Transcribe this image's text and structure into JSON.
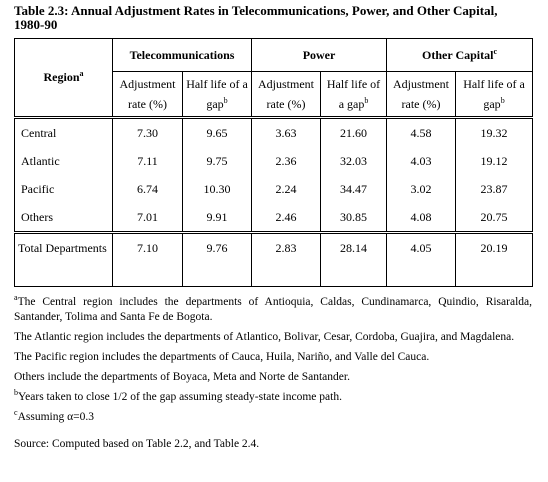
{
  "title": "Table 2.3: Annual Adjustment Rates in Telecommunications, Power, and Other Capital, 1980-90",
  "table": {
    "region_header": {
      "text": "Region",
      "sup": "a"
    },
    "groups": [
      {
        "text": "Telecommunications",
        "columns": [
          {
            "text": "Adjustment rate (%)"
          },
          {
            "text": "Half life of a gap",
            "sup": "b"
          }
        ]
      },
      {
        "text": "Power",
        "columns": [
          {
            "text": "Adjustment rate (%)"
          },
          {
            "text": "Half life of a gap",
            "sup": "b"
          }
        ]
      },
      {
        "text": "Other Capital",
        "sup": "c",
        "columns": [
          {
            "text": "Adjustment rate (%)"
          },
          {
            "text": "Half life of a gap",
            "sup": "b"
          }
        ]
      }
    ],
    "rows": [
      [
        "Central",
        "7.30",
        "9.65",
        "3.63",
        "21.60",
        "4.58",
        "19.32"
      ],
      [
        "Atlantic",
        "7.11",
        "9.75",
        "2.36",
        "32.03",
        "4.03",
        "19.12"
      ],
      [
        "Pacific",
        "6.74",
        "10.30",
        "2.24",
        "34.47",
        "3.02",
        "23.87"
      ],
      [
        "Others",
        "7.01",
        "9.91",
        "2.46",
        "30.85",
        "4.08",
        "20.75"
      ]
    ],
    "total": [
      "Total Departments",
      "7.10",
      "9.76",
      "2.83",
      "28.14",
      "4.05",
      "20.19"
    ]
  },
  "footnotes": [
    {
      "sup": "a",
      "text": "The Central region includes the departments of Antioquia, Caldas, Cundinamarca, Quindio, Risaralda, Santander, Tolima and Santa Fe de Bogota."
    },
    {
      "text": "The Atlantic region includes the departments of Atlantico, Bolivar, Cesar, Cordoba, Guajira, and Magdalena."
    },
    {
      "text": "The Pacific region includes the departments of Cauca, Huila, Nariño, and Valle del Cauca."
    },
    {
      "text": "Others include the departments of Boyaca, Meta and Norte de Santander."
    },
    {
      "sup": "b",
      "text": "Years taken to close 1/2 of the gap assuming steady-state income path."
    },
    {
      "sup": "c",
      "text": "Assuming  α=0.3"
    }
  ],
  "source": "Source: Computed based on Table 2.2, and Table 2.4."
}
